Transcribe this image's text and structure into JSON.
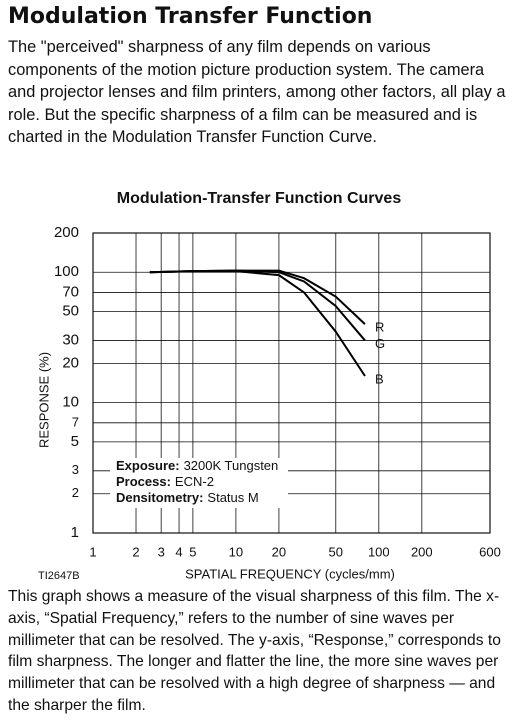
{
  "header": {
    "title": "Modulation Transfer Function"
  },
  "intro": "The \"perceived\" sharpness of any film depends on various components of the motion picture production system. The camera and projector lenses and film printers, among other factors, all play a role. But the specific sharpness of a film can be measured and is charted in the Modulation Transfer Function Curve.",
  "chart_data": {
    "type": "line",
    "title": "Modulation-Transfer Function Curves",
    "x_label": "SPATIAL FREQUENCY (cycles/mm)",
    "y_label": "RESPONSE (%)",
    "code": "TI2647B",
    "x": [
      2.5,
      5,
      10,
      20,
      30,
      50,
      80
    ],
    "series": [
      {
        "name": "R",
        "color": "#000000",
        "values": [
          100,
          102,
          103,
          103,
          90,
          65,
          40
        ]
      },
      {
        "name": "G",
        "color": "#000000",
        "values": [
          100,
          102,
          103,
          100,
          85,
          55,
          30
        ]
      },
      {
        "name": "B",
        "color": "#000000",
        "values": [
          100,
          102,
          102,
          95,
          70,
          35,
          16
        ]
      }
    ],
    "xlim": [
      1,
      600
    ],
    "ylim": [
      1,
      200
    ],
    "log_x": true,
    "log_y": true,
    "xticks": [
      1,
      2,
      3,
      4,
      5,
      10,
      20,
      50,
      100,
      200,
      600
    ],
    "yticks": [
      1,
      2,
      3,
      5,
      7,
      10,
      20,
      30,
      50,
      70,
      100,
      200
    ],
    "grid": true,
    "annotations": [
      {
        "label": "Exposure:",
        "text": "3200K Tungsten"
      },
      {
        "label": "Process:",
        "text": "ECN-2"
      },
      {
        "label": "Densitometry:",
        "text": "Status M"
      }
    ]
  },
  "caption": "This graph shows a measure of the visual sharpness of this film. The x-axis, “Spatial Frequency,” refers to the number of sine waves per millimeter that can be resolved. The y-axis, “Response,” corresponds to film sharpness. The longer and flatter the line, the more sine waves per millimeter that can be resolved with a high degree of sharpness — and the sharper the film."
}
